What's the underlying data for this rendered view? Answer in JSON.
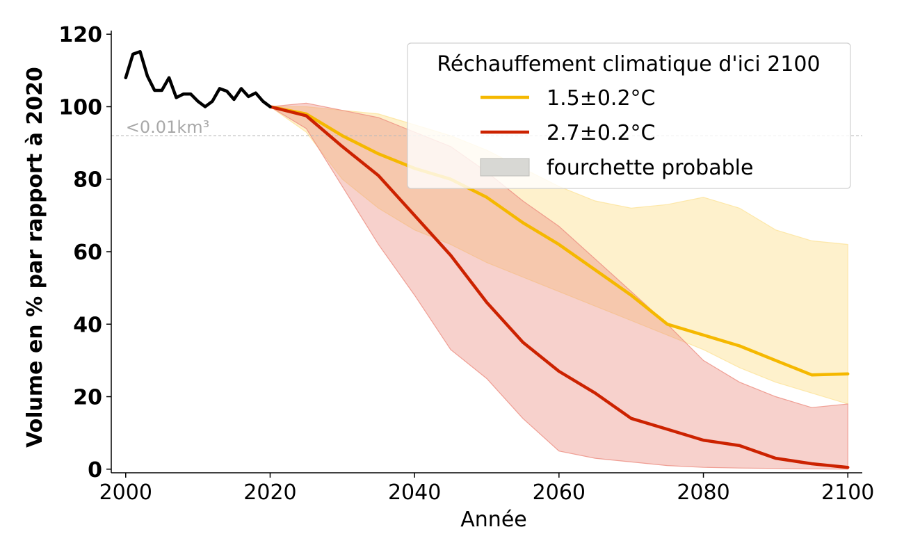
{
  "chart_data": {
    "type": "line",
    "xlabel": "Année",
    "ylabel": "Volume en % par rapport à 2020",
    "xlim": [
      1998,
      2102
    ],
    "ylim": [
      -1,
      121
    ],
    "x_ticks": [
      2000,
      2020,
      2040,
      2060,
      2080,
      2100
    ],
    "y_ticks": [
      0,
      20,
      40,
      60,
      80,
      100,
      120
    ],
    "reference_line": {
      "y": 92,
      "label": "<0.01km³",
      "color": "#bbbbbb",
      "style": "dashed"
    },
    "grid": false,
    "legend": {
      "title": "Réchauffement climatique d'ici 2100",
      "placement": "top-right",
      "entries": [
        {
          "label": "1.5±0.2°C",
          "kind": "line",
          "color": "#f5b800"
        },
        {
          "label": "2.7±0.2°C",
          "kind": "line",
          "color": "#cc2200"
        },
        {
          "label": "fourchette probable",
          "kind": "patch",
          "color": "#d8d8d4"
        }
      ]
    },
    "historical": {
      "color": "#000000",
      "x": [
        2000,
        2001,
        2002,
        2003,
        2004,
        2005,
        2006,
        2007,
        2008,
        2009,
        2010,
        2011,
        2012,
        2013,
        2014,
        2015,
        2016,
        2017,
        2018,
        2019,
        2020
      ],
      "y": [
        108,
        114.5,
        115.2,
        108.5,
        104.5,
        104.5,
        108,
        102.5,
        103.5,
        103.5,
        101.5,
        100,
        101.5,
        105,
        104.3,
        102,
        105,
        102.8,
        103.8,
        101.5,
        100
      ]
    },
    "series": [
      {
        "name": "1.5±0.2°C",
        "color": "#f5b800",
        "band_color": "#fde49a",
        "x": [
          2020,
          2025,
          2030,
          2035,
          2040,
          2045,
          2050,
          2055,
          2060,
          2065,
          2070,
          2075,
          2080,
          2085,
          2090,
          2095,
          2100
        ],
        "y": [
          100,
          98,
          92,
          87,
          83,
          80,
          75,
          68,
          62,
          55,
          48,
          40,
          37,
          34,
          30,
          26,
          26.3
        ],
        "lower": [
          100,
          93,
          80,
          72,
          66,
          62,
          57,
          53,
          49,
          45,
          41,
          37,
          33,
          28,
          24,
          21,
          18
        ],
        "upper": [
          100,
          100,
          99,
          98,
          95,
          92,
          88,
          83,
          78,
          74,
          72,
          73,
          75,
          72,
          66,
          63,
          62
        ]
      },
      {
        "name": "2.7±0.2°C",
        "color": "#cc2200",
        "band_color": "#ec8c80",
        "x": [
          2020,
          2025,
          2030,
          2035,
          2040,
          2045,
          2050,
          2055,
          2060,
          2065,
          2070,
          2075,
          2080,
          2085,
          2090,
          2095,
          2100
        ],
        "y": [
          100,
          97.5,
          89,
          81,
          70,
          59,
          46,
          35,
          27,
          21,
          14,
          11,
          8,
          6.5,
          3,
          1.5,
          0.5
        ],
        "lower": [
          100,
          94,
          78,
          62,
          48,
          33,
          25,
          14,
          5,
          3,
          2,
          1,
          0.5,
          0.3,
          0.2,
          0.1,
          0
        ],
        "upper": [
          100,
          101,
          99,
          97,
          93,
          89,
          82,
          74,
          67,
          58,
          49,
          40,
          30,
          24,
          20,
          17,
          18
        ]
      }
    ]
  }
}
